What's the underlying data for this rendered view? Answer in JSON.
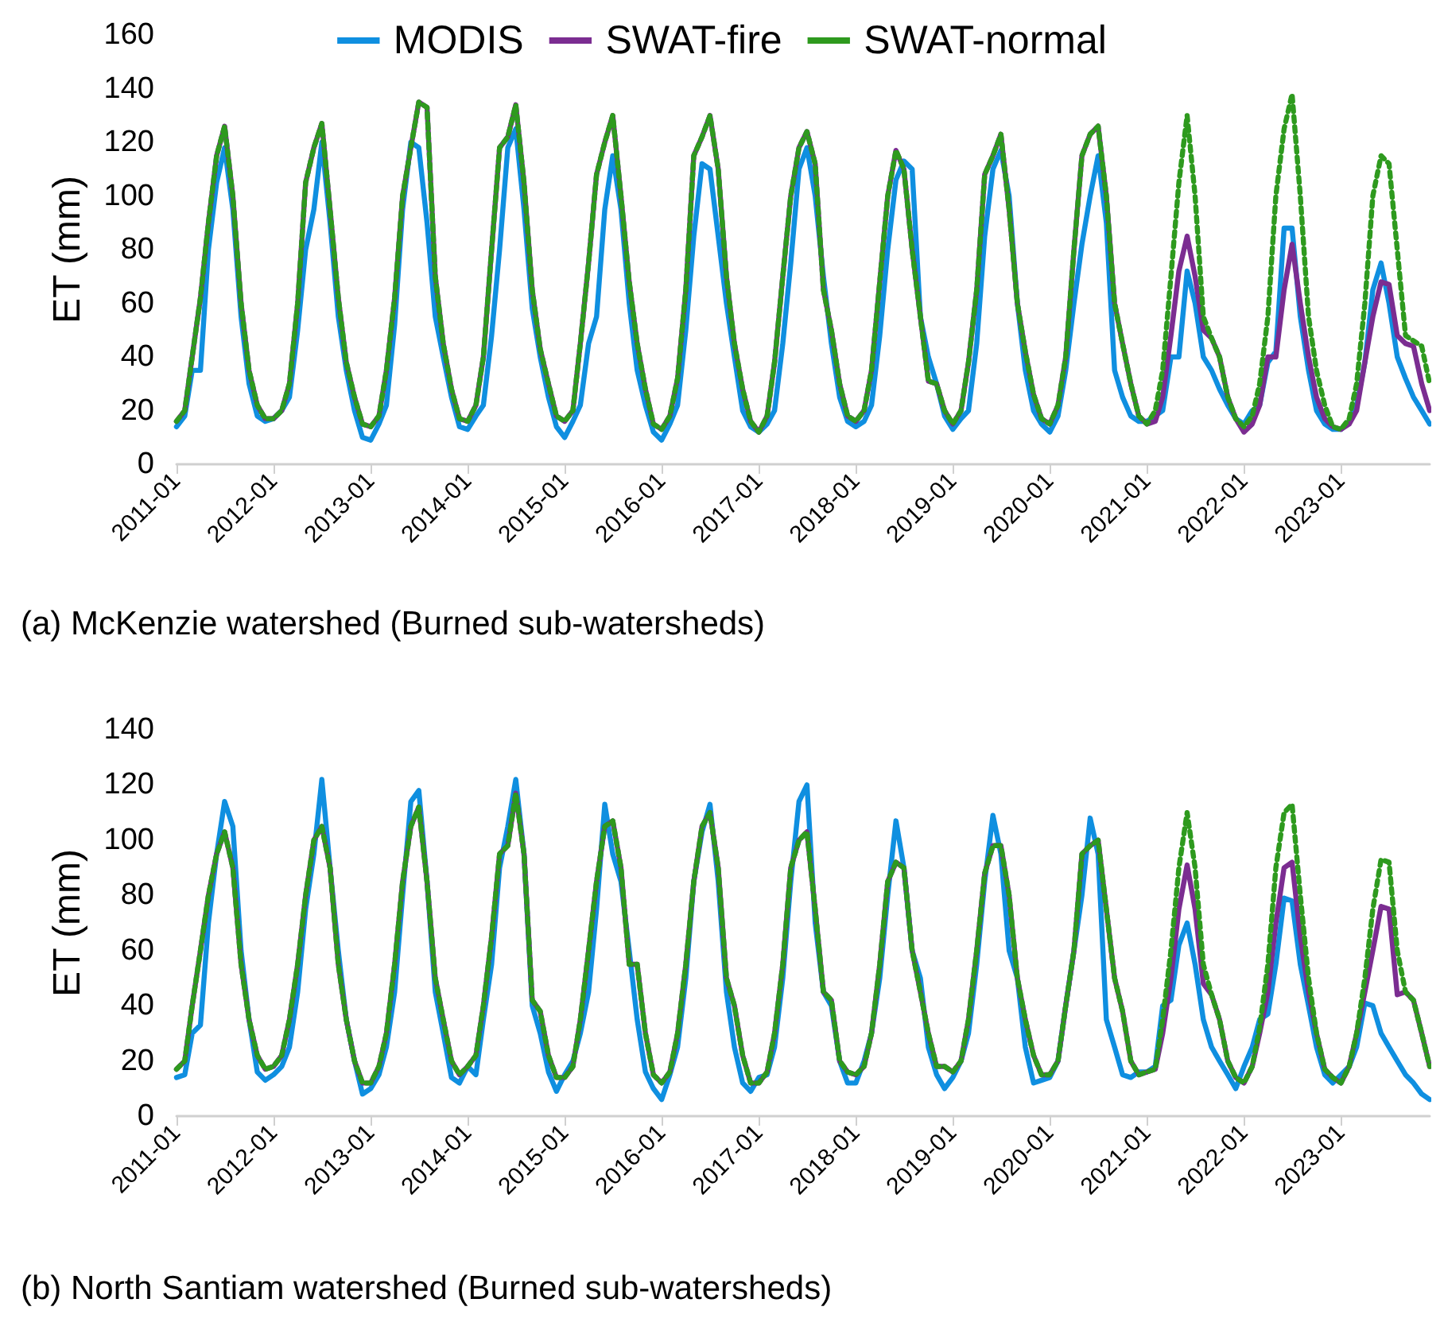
{
  "chart_data": [
    {
      "type": "line",
      "title": "(a) McKenzie watershed (Burned sub-watersheds)",
      "ylabel": "ET (mm)",
      "legend": "top",
      "marker": "none",
      "grid": false,
      "x": [
        "2011-01",
        "2011-02",
        "2011-03",
        "2011-04",
        "2011-05",
        "2011-06",
        "2011-07",
        "2011-08",
        "2011-09",
        "2011-10",
        "2011-11",
        "2011-12",
        "2012-01",
        "2012-02",
        "2012-03",
        "2012-04",
        "2012-05",
        "2012-06",
        "2012-07",
        "2012-08",
        "2012-09",
        "2012-10",
        "2012-11",
        "2012-12",
        "2013-01",
        "2013-02",
        "2013-03",
        "2013-04",
        "2013-05",
        "2013-06",
        "2013-07",
        "2013-08",
        "2013-09",
        "2013-10",
        "2013-11",
        "2013-12",
        "2014-01",
        "2014-02",
        "2014-03",
        "2014-04",
        "2014-05",
        "2014-06",
        "2014-07",
        "2014-08",
        "2014-09",
        "2014-10",
        "2014-11",
        "2014-12",
        "2015-01",
        "2015-02",
        "2015-03",
        "2015-04",
        "2015-05",
        "2015-06",
        "2015-07",
        "2015-08",
        "2015-09",
        "2015-10",
        "2015-11",
        "2015-12",
        "2016-01",
        "2016-02",
        "2016-03",
        "2016-04",
        "2016-05",
        "2016-06",
        "2016-07",
        "2016-08",
        "2016-09",
        "2016-10",
        "2016-11",
        "2016-12",
        "2017-01",
        "2017-02",
        "2017-03",
        "2017-04",
        "2017-05",
        "2017-06",
        "2017-07",
        "2017-08",
        "2017-09",
        "2017-10",
        "2017-11",
        "2017-12",
        "2018-01",
        "2018-02",
        "2018-03",
        "2018-04",
        "2018-05",
        "2018-06",
        "2018-07",
        "2018-08",
        "2018-09",
        "2018-10",
        "2018-11",
        "2018-12",
        "2019-01",
        "2019-02",
        "2019-03",
        "2019-04",
        "2019-05",
        "2019-06",
        "2019-07",
        "2019-08",
        "2019-09",
        "2019-10",
        "2019-11",
        "2019-12",
        "2020-01",
        "2020-02",
        "2020-03",
        "2020-04",
        "2020-05",
        "2020-06",
        "2020-07",
        "2020-08",
        "2020-09",
        "2020-10",
        "2020-11",
        "2020-12",
        "2021-01",
        "2021-02",
        "2021-03",
        "2021-04",
        "2021-05",
        "2021-06",
        "2021-07",
        "2021-08",
        "2021-09",
        "2021-10",
        "2021-11",
        "2021-12",
        "2022-01",
        "2022-02",
        "2022-03",
        "2022-04",
        "2022-05",
        "2022-06",
        "2022-07",
        "2022-08",
        "2022-09",
        "2022-10",
        "2022-11",
        "2022-12",
        "2023-01",
        "2023-02",
        "2023-03",
        "2023-04",
        "2023-05",
        "2023-06",
        "2023-07",
        "2023-08",
        "2023-09",
        "2023-10",
        "2023-11",
        "2023-12"
      ],
      "xlim": [
        "2011-01",
        "2023-12"
      ],
      "xticks": [
        "2011-01",
        "2012-01",
        "2013-01",
        "2014-01",
        "2015-01",
        "2016-01",
        "2017-01",
        "2018-01",
        "2019-01",
        "2020-01",
        "2021-01",
        "2022-01",
        "2023-01"
      ],
      "ylim": [
        0,
        160
      ],
      "yticks": [
        0,
        20,
        40,
        60,
        80,
        100,
        120,
        140,
        160
      ],
      "series": [
        {
          "name": "MODIS",
          "color": "#0f8fe0",
          "line_style": "solid",
          "values": [
            14,
            18,
            35,
            35,
            80,
            105,
            118,
            95,
            55,
            30,
            18,
            16,
            17,
            20,
            25,
            50,
            80,
            95,
            120,
            90,
            55,
            35,
            20,
            10,
            9,
            15,
            22,
            52,
            95,
            120,
            118,
            90,
            55,
            40,
            25,
            14,
            13,
            18,
            22,
            48,
            80,
            118,
            125,
            95,
            58,
            40,
            25,
            14,
            10,
            16,
            22,
            45,
            55,
            95,
            115,
            95,
            60,
            35,
            22,
            12,
            9,
            15,
            22,
            50,
            85,
            112,
            110,
            85,
            60,
            40,
            20,
            14,
            12,
            15,
            20,
            45,
            75,
            110,
            118,
            100,
            70,
            45,
            25,
            16,
            14,
            16,
            22,
            48,
            80,
            106,
            113,
            110,
            55,
            40,
            30,
            18,
            13,
            17,
            20,
            45,
            85,
            110,
            117,
            100,
            60,
            35,
            20,
            15,
            12,
            18,
            35,
            60,
            82,
            100,
            115,
            90,
            35,
            25,
            18,
            16,
            16,
            18,
            20,
            40,
            40,
            72,
            60,
            40,
            35,
            28,
            22,
            17,
            15,
            20,
            22,
            38,
            42,
            88,
            88,
            55,
            35,
            20,
            15,
            13,
            13,
            16,
            22,
            38,
            65,
            75,
            60,
            40,
            32,
            25,
            20,
            15
          ]
        },
        {
          "name": "SWAT-fire",
          "color": "#7b2d91",
          "line_style": "solid",
          "values": [
            16,
            20,
            40,
            62,
            90,
            115,
            126,
            100,
            60,
            35,
            22,
            17,
            17,
            20,
            30,
            60,
            105,
            118,
            127,
            95,
            62,
            38,
            25,
            15,
            14,
            18,
            35,
            62,
            100,
            118,
            135,
            133,
            70,
            45,
            28,
            17,
            16,
            22,
            40,
            80,
            118,
            122,
            134,
            105,
            65,
            43,
            30,
            18,
            16,
            20,
            45,
            75,
            108,
            120,
            130,
            100,
            68,
            45,
            28,
            15,
            13,
            18,
            32,
            65,
            115,
            122,
            130,
            110,
            70,
            45,
            28,
            16,
            12,
            18,
            38,
            70,
            100,
            118,
            124,
            112,
            65,
            50,
            30,
            18,
            16,
            20,
            35,
            68,
            100,
            117,
            110,
            80,
            55,
            31,
            30,
            20,
            15,
            20,
            38,
            65,
            108,
            115,
            123,
            95,
            60,
            42,
            26,
            17,
            15,
            22,
            40,
            80,
            115,
            123,
            126,
            100,
            60,
            45,
            30,
            18,
            15,
            16,
            25,
            48,
            72,
            85,
            70,
            50,
            47,
            40,
            25,
            17,
            12,
            15,
            22,
            40,
            40,
            65,
            82,
            60,
            40,
            25,
            17,
            14,
            13,
            15,
            20,
            38,
            55,
            68,
            67,
            48,
            45,
            44,
            30,
            20
          ]
        },
        {
          "name": "SWAT-normal",
          "color": "#2e9a1e",
          "line_style": "dotted",
          "values": [
            16,
            20,
            40,
            62,
            90,
            115,
            126,
            100,
            60,
            35,
            22,
            17,
            17,
            20,
            30,
            60,
            105,
            118,
            127,
            95,
            62,
            38,
            25,
            15,
            14,
            18,
            35,
            62,
            100,
            118,
            135,
            133,
            70,
            45,
            28,
            17,
            16,
            22,
            40,
            80,
            118,
            122,
            134,
            105,
            65,
            43,
            30,
            18,
            16,
            20,
            45,
            75,
            108,
            120,
            130,
            100,
            68,
            45,
            28,
            15,
            13,
            18,
            32,
            65,
            115,
            122,
            130,
            110,
            70,
            45,
            28,
            16,
            12,
            18,
            38,
            70,
            100,
            118,
            124,
            112,
            65,
            50,
            30,
            18,
            16,
            20,
            35,
            68,
            100,
            117,
            110,
            80,
            55,
            31,
            30,
            20,
            15,
            20,
            38,
            65,
            108,
            115,
            123,
            95,
            60,
            42,
            26,
            17,
            15,
            22,
            40,
            80,
            115,
            123,
            126,
            100,
            60,
            45,
            30,
            18,
            15,
            20,
            35,
            70,
            105,
            130,
            100,
            55,
            47,
            40,
            25,
            17,
            14,
            18,
            30,
            55,
            100,
            125,
            138,
            100,
            55,
            35,
            22,
            14,
            13,
            17,
            30,
            60,
            100,
            115,
            112,
            80,
            48,
            46,
            44,
            30
          ]
        }
      ]
    },
    {
      "type": "line",
      "title": "(b) North Santiam watershed (Burned sub-watersheds)",
      "ylabel": "ET (mm)",
      "marker": "none",
      "grid": false,
      "x": [
        "2011-01",
        "2011-02",
        "2011-03",
        "2011-04",
        "2011-05",
        "2011-06",
        "2011-07",
        "2011-08",
        "2011-09",
        "2011-10",
        "2011-11",
        "2011-12",
        "2012-01",
        "2012-02",
        "2012-03",
        "2012-04",
        "2012-05",
        "2012-06",
        "2012-07",
        "2012-08",
        "2012-09",
        "2012-10",
        "2012-11",
        "2012-12",
        "2013-01",
        "2013-02",
        "2013-03",
        "2013-04",
        "2013-05",
        "2013-06",
        "2013-07",
        "2013-08",
        "2013-09",
        "2013-10",
        "2013-11",
        "2013-12",
        "2014-01",
        "2014-02",
        "2014-03",
        "2014-04",
        "2014-05",
        "2014-06",
        "2014-07",
        "2014-08",
        "2014-09",
        "2014-10",
        "2014-11",
        "2014-12",
        "2015-01",
        "2015-02",
        "2015-03",
        "2015-04",
        "2015-05",
        "2015-06",
        "2015-07",
        "2015-08",
        "2015-09",
        "2015-10",
        "2015-11",
        "2015-12",
        "2016-01",
        "2016-02",
        "2016-03",
        "2016-04",
        "2016-05",
        "2016-06",
        "2016-07",
        "2016-08",
        "2016-09",
        "2016-10",
        "2016-11",
        "2016-12",
        "2017-01",
        "2017-02",
        "2017-03",
        "2017-04",
        "2017-05",
        "2017-06",
        "2017-07",
        "2017-08",
        "2017-09",
        "2017-10",
        "2017-11",
        "2017-12",
        "2018-01",
        "2018-02",
        "2018-03",
        "2018-04",
        "2018-05",
        "2018-06",
        "2018-07",
        "2018-08",
        "2018-09",
        "2018-10",
        "2018-11",
        "2018-12",
        "2019-01",
        "2019-02",
        "2019-03",
        "2019-04",
        "2019-05",
        "2019-06",
        "2019-07",
        "2019-08",
        "2019-09",
        "2019-10",
        "2019-11",
        "2019-12",
        "2020-01",
        "2020-02",
        "2020-03",
        "2020-04",
        "2020-05",
        "2020-06",
        "2020-07",
        "2020-08",
        "2020-09",
        "2020-10",
        "2020-11",
        "2020-12",
        "2021-01",
        "2021-02",
        "2021-03",
        "2021-04",
        "2021-05",
        "2021-06",
        "2021-07",
        "2021-08",
        "2021-09",
        "2021-10",
        "2021-11",
        "2021-12",
        "2022-01",
        "2022-02",
        "2022-03",
        "2022-04",
        "2022-05",
        "2022-06",
        "2022-07",
        "2022-08",
        "2022-09",
        "2022-10",
        "2022-11",
        "2022-12",
        "2023-01",
        "2023-02",
        "2023-03",
        "2023-04",
        "2023-05",
        "2023-06",
        "2023-07",
        "2023-08",
        "2023-09",
        "2023-10",
        "2023-11",
        "2023-12"
      ],
      "xlim": [
        "2011-01",
        "2023-12"
      ],
      "xticks": [
        "2011-01",
        "2012-01",
        "2013-01",
        "2014-01",
        "2015-01",
        "2016-01",
        "2017-01",
        "2018-01",
        "2019-01",
        "2020-01",
        "2021-01",
        "2022-01",
        "2023-01"
      ],
      "ylim": [
        0,
        140
      ],
      "yticks": [
        0,
        20,
        40,
        60,
        80,
        100,
        120,
        140
      ],
      "series": [
        {
          "color": "#0f8fe0",
          "line_style": "solid",
          "values": [
            14,
            15,
            30,
            33,
            70,
            95,
            114,
            105,
            60,
            35,
            16,
            13,
            15,
            18,
            25,
            45,
            75,
            95,
            122,
            90,
            60,
            35,
            20,
            8,
            10,
            15,
            25,
            45,
            80,
            114,
            118,
            85,
            45,
            30,
            14,
            12,
            18,
            15,
            35,
            55,
            90,
            105,
            122,
            95,
            40,
            30,
            16,
            9,
            15,
            20,
            30,
            45,
            75,
            113,
            95,
            85,
            60,
            35,
            16,
            10,
            6,
            15,
            25,
            50,
            85,
            103,
            113,
            85,
            45,
            25,
            12,
            9,
            14,
            15,
            25,
            50,
            85,
            114,
            120,
            70,
            45,
            40,
            20,
            12,
            12,
            20,
            30,
            50,
            80,
            107,
            90,
            60,
            50,
            25,
            15,
            10,
            14,
            20,
            30,
            55,
            85,
            109,
            95,
            60,
            50,
            25,
            12,
            13,
            14,
            20,
            40,
            60,
            80,
            108,
            95,
            35,
            25,
            15,
            14,
            16,
            16,
            18,
            40,
            42,
            62,
            70,
            55,
            35,
            25,
            20,
            15,
            10,
            18,
            25,
            35,
            37,
            55,
            79,
            78,
            55,
            40,
            25,
            15,
            12,
            15,
            18,
            25,
            41,
            40,
            30,
            25,
            20,
            15,
            12,
            8,
            6
          ]
        },
        {
          "color": "#7b2d91",
          "line_style": "solid",
          "values": [
            17,
            20,
            40,
            60,
            80,
            95,
            103,
            90,
            55,
            35,
            22,
            17,
            18,
            22,
            35,
            55,
            80,
            100,
            105,
            90,
            55,
            35,
            20,
            12,
            12,
            18,
            30,
            55,
            85,
            105,
            112,
            85,
            50,
            35,
            20,
            15,
            18,
            22,
            40,
            65,
            95,
            98,
            117,
            95,
            42,
            38,
            22,
            14,
            14,
            18,
            35,
            60,
            85,
            105,
            107,
            90,
            55,
            55,
            30,
            15,
            12,
            16,
            30,
            55,
            85,
            105,
            110,
            90,
            50,
            40,
            22,
            12,
            12,
            16,
            30,
            55,
            90,
            100,
            103,
            75,
            45,
            42,
            20,
            16,
            15,
            18,
            30,
            55,
            85,
            92,
            90,
            60,
            45,
            30,
            18,
            18,
            16,
            20,
            35,
            60,
            88,
            98,
            98,
            80,
            50,
            35,
            22,
            15,
            15,
            20,
            40,
            60,
            95,
            98,
            100,
            75,
            50,
            38,
            20,
            15,
            16,
            17,
            30,
            50,
            75,
            91,
            75,
            48,
            44,
            35,
            20,
            14,
            12,
            18,
            30,
            45,
            70,
            90,
            92,
            65,
            45,
            30,
            17,
            14,
            12,
            18,
            30,
            45,
            60,
            76,
            75,
            44,
            45,
            42,
            30,
            18
          ]
        },
        {
          "color": "#2e9a1e",
          "line_style": "dotted",
          "values": [
            17,
            20,
            40,
            60,
            80,
            95,
            103,
            90,
            55,
            35,
            22,
            17,
            18,
            22,
            35,
            55,
            80,
            100,
            105,
            90,
            55,
            35,
            20,
            12,
            12,
            18,
            30,
            55,
            85,
            105,
            112,
            85,
            50,
            35,
            20,
            15,
            18,
            22,
            40,
            65,
            95,
            98,
            117,
            95,
            42,
            38,
            22,
            14,
            14,
            18,
            35,
            60,
            85,
            105,
            107,
            90,
            55,
            55,
            30,
            15,
            12,
            16,
            30,
            55,
            85,
            105,
            110,
            90,
            50,
            40,
            22,
            12,
            12,
            16,
            30,
            55,
            90,
            100,
            103,
            75,
            45,
            42,
            20,
            16,
            15,
            18,
            30,
            55,
            85,
            92,
            90,
            60,
            45,
            30,
            18,
            18,
            16,
            20,
            35,
            60,
            88,
            98,
            98,
            80,
            50,
            35,
            22,
            15,
            15,
            20,
            40,
            60,
            95,
            98,
            100,
            75,
            50,
            38,
            20,
            15,
            16,
            17,
            35,
            60,
            90,
            110,
            90,
            55,
            44,
            35,
            20,
            14,
            12,
            18,
            32,
            55,
            90,
            110,
            113,
            80,
            50,
            30,
            17,
            14,
            12,
            18,
            30,
            50,
            75,
            93,
            92,
            60,
            45,
            42,
            30,
            18
          ]
        }
      ]
    }
  ]
}
